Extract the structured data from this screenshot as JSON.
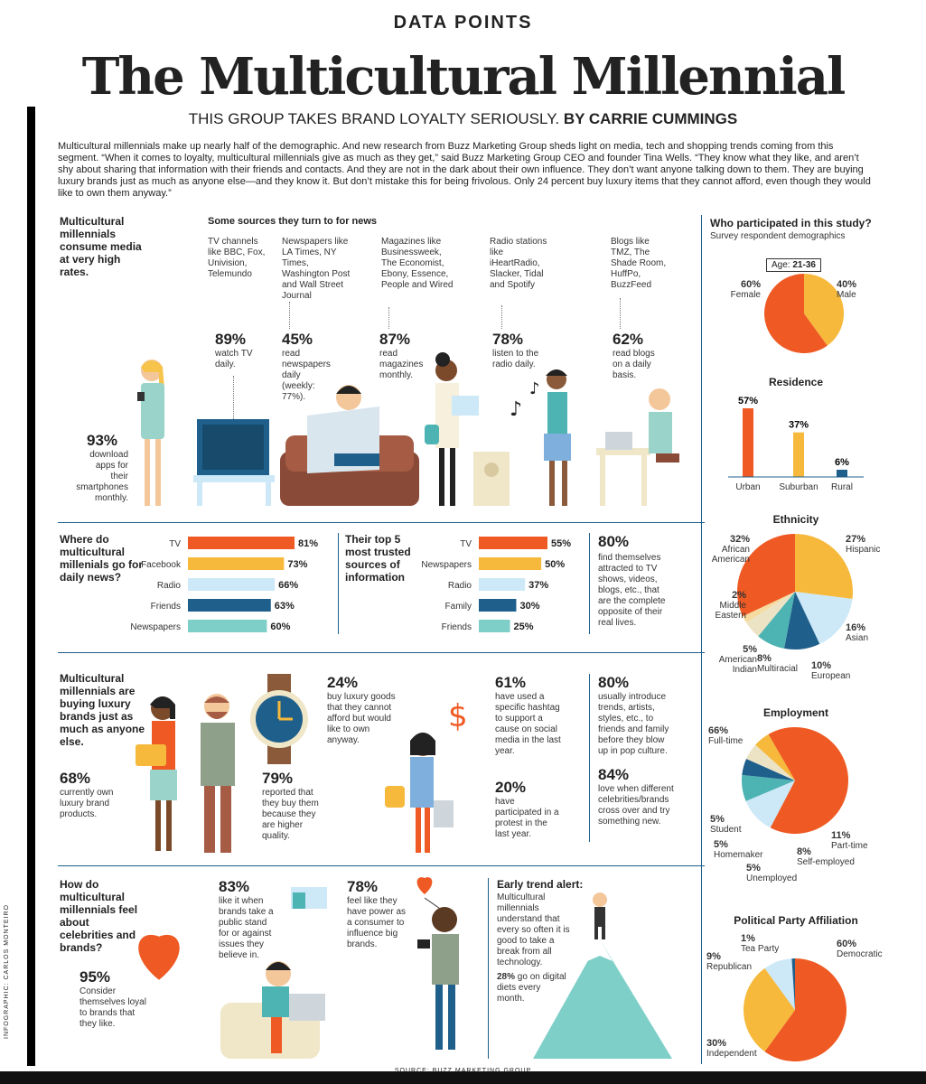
{
  "header": {
    "kicker": "DATA POINTS",
    "title": "The Multicultural Millennial",
    "subtitle": "THIS GROUP TAKES BRAND LOYALTY SERIOUSLY.",
    "byline": "BY CARRIE CUMMINGS",
    "intro": "Multicultural millennials make up nearly half of the demographic. And new research from Buzz Marketing Group sheds light on media, tech and shopping trends coming from this segment. “When it comes to loyalty, multicultural millennials give as much as they get,” said Buzz Marketing Group CEO and founder Tina Wells. “They know what they like, and aren’t shy about sharing that information with their friends and contacts. And they are not in the dark about their own influence. They don’t want anyone talking down to them. They are buying luxury brands just as much as anyone else—and they know it. But don’t mistake this for being frivolous. Only 24 percent buy luxury items that they cannot afford, even though they would like to own them anyway.”"
  },
  "credit": "INFOGRAPHIC: CARLOS MONTEIRO",
  "source": "SOURCE: BUZZ MARKETING GROUP",
  "media": {
    "heading": "Multicultural millennials consume media at very high rates.",
    "sources_heading": "Some sources they turn to for news",
    "sources": [
      {
        "desc": "TV channels like BBC, Fox, Univision, Telemundo",
        "pct": "89%",
        "stat": "watch TV daily."
      },
      {
        "desc": "Newspapers like LA Times, NY Times, Washington Post and Wall Street Journal",
        "pct": "45%",
        "stat": "read newspapers daily (weekly: 77%)."
      },
      {
        "desc": "Magazines like Businessweek, The Economist, Ebony, Essence, People and Wired",
        "pct": "87%",
        "stat": "read magazines monthly."
      },
      {
        "desc": "Radio stations like iHeartRadio, Slacker, Tidal and Spotify",
        "pct": "78%",
        "stat": "listen to the radio daily."
      },
      {
        "desc": "Blogs like TMZ, The Shade Room, HuffPo, BuzzFeed",
        "pct": "62%",
        "stat": "read blogs on a daily basis."
      }
    ],
    "apps_pct": "93%",
    "apps_stat": "download apps for their smartphones monthly."
  },
  "daily_news": {
    "heading": "Where do multicultural millenials go for daily news?"
  },
  "trusted": {
    "heading": "Their top 5 most trusted sources of information"
  },
  "attracted": {
    "pct": "80%",
    "stat": "find themselves attracted to TV shows, videos, blogs, etc., that are the complete opposite of their real lives."
  },
  "luxury": {
    "heading": "Multicultural millennials are buying luxury brands just as much as anyone else.",
    "own_pct": "68%",
    "own_stat": "currently own luxury brand products.",
    "quality_pct": "79%",
    "quality_stat": "reported that they buy them because they are higher quality.",
    "afford_pct": "24%",
    "afford_stat": "buy luxury goods that they cannot afford but would like to own anyway.",
    "hashtag_pct": "61%",
    "hashtag_stat": "have used a specific hashtag to support a cause on social media in the last year.",
    "protest_pct": "20%",
    "protest_stat": "have participated in a protest in the last year.",
    "trends_pct": "80%",
    "trends_stat": "usually introduce trends, artists, styles, etc., to friends and family before they blow up in pop culture.",
    "crossover_pct": "84%",
    "crossover_stat": "love when different celebrities/brands cross over and try something new."
  },
  "celebs": {
    "heading": "How do multicultural millennials feel about celebrities and brands?",
    "loyal_pct": "95%",
    "loyal_stat": "Consider themselves loyal to brands that they like.",
    "stand_pct": "83%",
    "stand_stat": "like it when brands take a public stand for or against issues they believe in.",
    "power_pct": "78%",
    "power_stat": "feel like they have power as a consumer to influence big brands.",
    "trend_heading": "Early trend alert:",
    "trend_stat": "Multicultural millennials understand that every so often it is good to take a break from all technology.",
    "diet_pct": "28%",
    "diet_stat": "go on digital diets every month."
  },
  "study": {
    "heading": "Who participated in this study?",
    "subheading": "Survey respondent demographics",
    "age_label": "Age:",
    "age_value": "21-36"
  },
  "chart_data": [
    {
      "type": "pie",
      "title": "",
      "slices": [
        {
          "label": "Female",
          "value": 60
        },
        {
          "label": "Male",
          "value": 40
        }
      ],
      "colors": [
        "#ef5a24",
        "#f6b93b"
      ]
    },
    {
      "type": "bar",
      "title": "Residence",
      "categories": [
        "Urban",
        "Suburban",
        "Rural"
      ],
      "values": [
        57,
        37,
        6
      ],
      "colors": [
        "#ef5a24",
        "#f6b93b",
        "#1f5f8b"
      ]
    },
    {
      "type": "pie",
      "title": "Ethnicity",
      "slices": [
        {
          "label": "Hispanic",
          "value": 27
        },
        {
          "label": "Asian",
          "value": 16
        },
        {
          "label": "European",
          "value": 10
        },
        {
          "label": "Multiracial",
          "value": 8
        },
        {
          "label": "American Indian",
          "value": 5
        },
        {
          "label": "Middle Eastern",
          "value": 2
        },
        {
          "label": "African American",
          "value": 32
        }
      ],
      "colors": [
        "#f6b93b",
        "#cde8f7",
        "#1f5f8b",
        "#4db3b3",
        "#ece3c5",
        "#f6dba0",
        "#ef5a24"
      ]
    },
    {
      "type": "pie",
      "title": "Employment",
      "slices": [
        {
          "label": "Full-time",
          "value": 66
        },
        {
          "label": "Part-time",
          "value": 11
        },
        {
          "label": "Self-employed",
          "value": 8
        },
        {
          "label": "Unemployed",
          "value": 5
        },
        {
          "label": "Homemaker",
          "value": 5
        },
        {
          "label": "Student",
          "value": 5
        }
      ],
      "colors": [
        "#ef5a24",
        "#cde8f7",
        "#4db3b3",
        "#1f5f8b",
        "#ece3c5",
        "#f6b93b"
      ]
    },
    {
      "type": "pie",
      "title": "Political Party Affiliation",
      "slices": [
        {
          "label": "Democratic",
          "value": 60
        },
        {
          "label": "Independent",
          "value": 30
        },
        {
          "label": "Republican",
          "value": 9
        },
        {
          "label": "Tea Party",
          "value": 1
        }
      ],
      "colors": [
        "#ef5a24",
        "#f6b93b",
        "#cde8f7",
        "#1f5f8b"
      ]
    },
    {
      "type": "bar",
      "title": "",
      "orientation": "horizontal",
      "categories": [
        "TV",
        "Facebook",
        "Radio",
        "Friends",
        "Newspapers"
      ],
      "values": [
        81,
        73,
        66,
        63,
        60
      ],
      "labels": [
        "81%",
        "73%",
        "66%",
        "63%",
        "60%"
      ],
      "colors": [
        "#ef5a24",
        "#f6b93b",
        "#cde8f7",
        "#1f5f8b",
        "#7fcfc9"
      ]
    },
    {
      "type": "bar",
      "title": "",
      "orientation": "horizontal",
      "categories": [
        "TV",
        "Newspapers",
        "Radio",
        "Family",
        "Friends"
      ],
      "values": [
        55,
        50,
        37,
        30,
        25
      ],
      "labels": [
        "55%",
        "50%",
        "37%",
        "30%",
        "25%"
      ],
      "colors": [
        "#ef5a24",
        "#f6b93b",
        "#cde8f7",
        "#1f5f8b",
        "#7fcfc9"
      ]
    }
  ]
}
